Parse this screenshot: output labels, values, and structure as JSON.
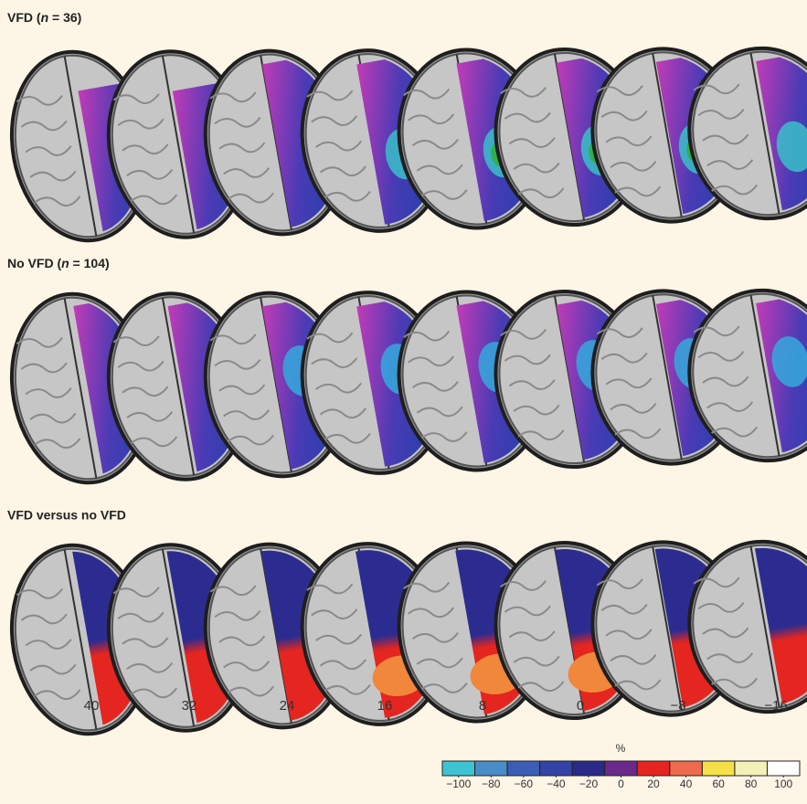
{
  "panels": [
    {
      "title": [
        "VFD (",
        "n",
        " = 36)"
      ]
    },
    {
      "title": [
        "No VFD (",
        "n",
        " = 104)"
      ]
    },
    {
      "title": [
        "VFD versus no VFD"
      ]
    }
  ],
  "slice_labels": [
    "40",
    "32",
    "24",
    "16",
    "8",
    "0",
    "−8",
    "−16"
  ],
  "colorbar": {
    "unit": "%",
    "colors": [
      "#3fc3d3",
      "#4a8cc8",
      "#3b5db5",
      "#3444a6",
      "#2a2a88",
      "#6a2a8a",
      "#e42421",
      "#ee6a4e",
      "#f6e04a",
      "#f3f0b8",
      "#ffffff"
    ],
    "ticks": [
      {
        "value": -100,
        "label": "−100"
      },
      {
        "value": -80,
        "label": "−80"
      },
      {
        "value": -60,
        "label": "−60"
      },
      {
        "value": -40,
        "label": "−40"
      },
      {
        "value": -20,
        "label": "−20"
      },
      0,
      20,
      40,
      60,
      80,
      100
    ]
  }
}
